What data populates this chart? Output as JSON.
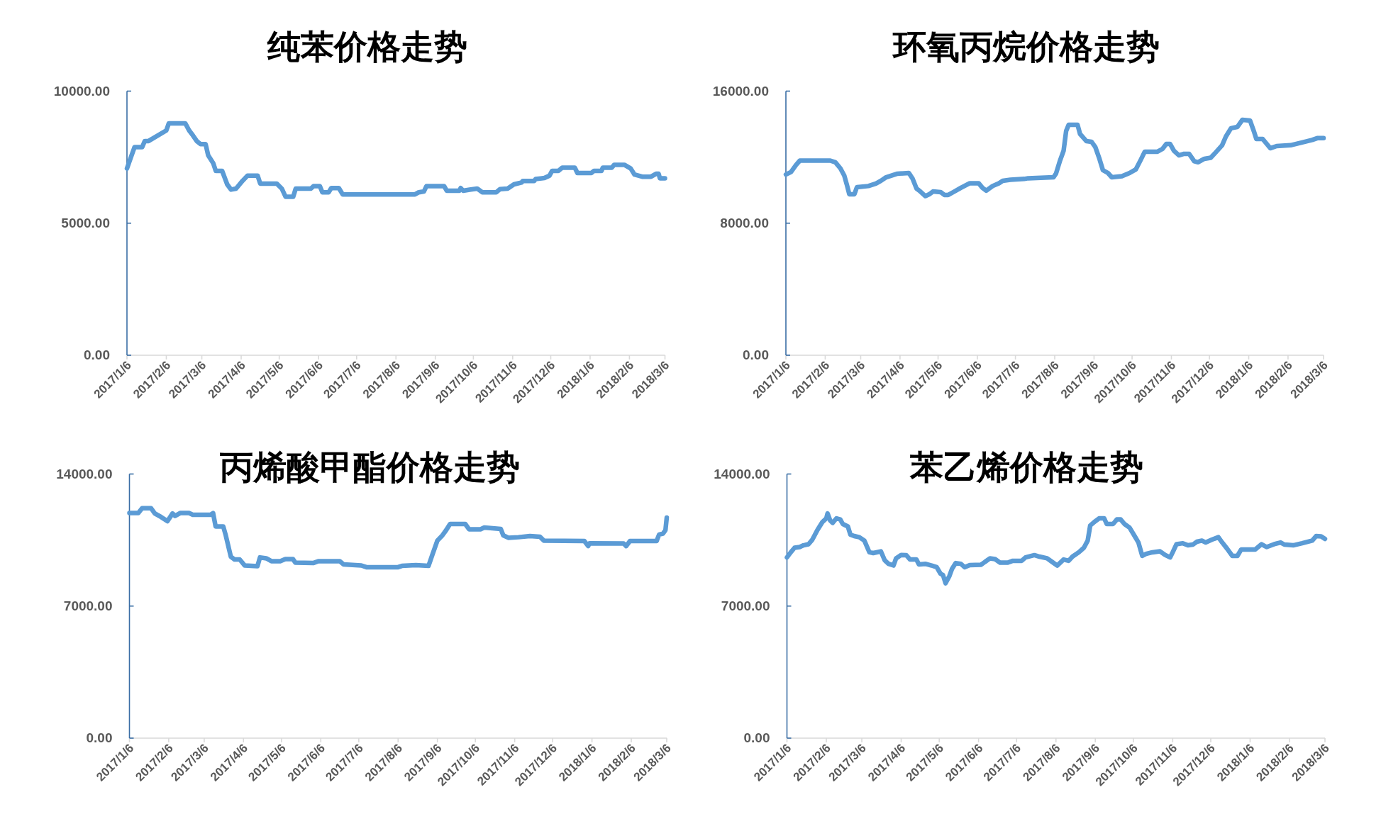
{
  "chart_data": [
    {
      "type": "line",
      "title": "纯苯价格走势",
      "color": "#5b9bd5",
      "x": [
        "2017-01-06",
        "2017-01-09",
        "2017-01-12",
        "2017-01-18",
        "2017-01-20",
        "2017-01-23",
        "2017-02-06",
        "2017-02-08",
        "2017-02-21",
        "2017-02-24",
        "2017-02-27",
        "2017-03-02",
        "2017-03-05",
        "2017-03-09",
        "2017-03-11",
        "2017-03-15",
        "2017-03-17",
        "2017-03-22",
        "2017-03-26",
        "2017-03-29",
        "2017-04-02",
        "2017-04-07",
        "2017-04-11",
        "2017-04-19",
        "2017-04-21",
        "2017-05-04",
        "2017-05-08",
        "2017-05-11",
        "2017-05-17",
        "2017-05-19",
        "2017-05-31",
        "2017-06-02",
        "2017-06-07",
        "2017-06-09",
        "2017-06-14",
        "2017-06-16",
        "2017-06-22",
        "2017-06-25",
        "2017-08-21",
        "2017-08-24",
        "2017-08-28",
        "2017-08-30",
        "2017-09-13",
        "2017-09-15",
        "2017-09-25",
        "2017-09-26",
        "2017-09-28",
        "2017-10-03",
        "2017-10-09",
        "2017-10-13",
        "2017-10-24",
        "2017-10-27",
        "2017-11-02",
        "2017-11-07",
        "2017-11-13",
        "2017-11-14",
        "2017-11-23",
        "2017-11-24",
        "2017-12-01",
        "2017-12-05",
        "2017-12-07",
        "2017-12-12",
        "2017-12-15",
        "2017-12-25",
        "2017-12-27",
        "2018-01-07",
        "2018-01-09",
        "2018-01-15",
        "2018-01-16",
        "2018-01-23",
        "2018-01-25",
        "2018-02-02",
        "2018-02-07",
        "2018-02-10",
        "2018-02-16",
        "2018-02-23",
        "2018-02-27",
        "2018-03-01",
        "2018-03-02",
        "2018-03-06"
      ],
      "values": [
        7070,
        7480,
        7880,
        7880,
        8110,
        8110,
        8510,
        8780,
        8780,
        8510,
        8320,
        8110,
        7990,
        7990,
        7570,
        7270,
        6980,
        6980,
        6470,
        6270,
        6310,
        6600,
        6800,
        6800,
        6500,
        6500,
        6310,
        6000,
        6000,
        6310,
        6310,
        6400,
        6400,
        6170,
        6170,
        6330,
        6330,
        6090,
        6090,
        6170,
        6200,
        6400,
        6400,
        6230,
        6230,
        6330,
        6230,
        6270,
        6310,
        6170,
        6170,
        6290,
        6310,
        6470,
        6540,
        6600,
        6600,
        6670,
        6710,
        6800,
        6980,
        6980,
        7100,
        7100,
        6900,
        6900,
        6980,
        6980,
        7100,
        7100,
        7210,
        7210,
        7070,
        6840,
        6760,
        6760,
        6870,
        6870,
        6700,
        6700
      ],
      "xlim": [
        "2017-01-06",
        "2018-03-06"
      ],
      "xticks": [
        {
          "value": "2017-01-06",
          "label": "2017/1/6"
        },
        {
          "value": "2017-02-06",
          "label": "2017/2/6"
        },
        {
          "value": "2017-03-06",
          "label": "2017/3/6"
        },
        {
          "value": "2017-04-06",
          "label": "2017/4/6"
        },
        {
          "value": "2017-05-06",
          "label": "2017/5/6"
        },
        {
          "value": "2017-06-06",
          "label": "2017/6/6"
        },
        {
          "value": "2017-07-06",
          "label": "2017/7/6"
        },
        {
          "value": "2017-08-06",
          "label": "2017/8/6"
        },
        {
          "value": "2017-09-06",
          "label": "2017/9/6"
        },
        {
          "value": "2017-10-06",
          "label": "2017/10/6"
        },
        {
          "value": "2017-11-06",
          "label": "2017/11/6"
        },
        {
          "value": "2017-12-06",
          "label": "2017/12/6"
        },
        {
          "value": "2018-01-06",
          "label": "2018/1/6"
        },
        {
          "value": "2018-02-06",
          "label": "2018/2/6"
        },
        {
          "value": "2018-03-06",
          "label": "2018/3/6"
        }
      ],
      "ylim": [
        0,
        10000
      ],
      "yticks": [
        {
          "value": 0,
          "label": "0.00"
        },
        {
          "value": 5000,
          "label": "5000.00"
        },
        {
          "value": 10000,
          "label": "10000.00"
        }
      ]
    },
    {
      "type": "line",
      "title": "环氧丙烷价格走势",
      "color": "#5b9bd5",
      "x": [
        "2017-01-06",
        "2017-01-10",
        "2017-01-14",
        "2017-01-17",
        "2017-02-10",
        "2017-02-14",
        "2017-02-18",
        "2017-02-21",
        "2017-02-23",
        "2017-02-25",
        "2017-03-01",
        "2017-03-03",
        "2017-03-12",
        "2017-03-18",
        "2017-03-22",
        "2017-03-26",
        "2017-04-04",
        "2017-04-13",
        "2017-04-16",
        "2017-04-19",
        "2017-04-22",
        "2017-04-26",
        "2017-04-29",
        "2017-05-02",
        "2017-05-08",
        "2017-05-11",
        "2017-05-14",
        "2017-05-18",
        "2017-05-24",
        "2017-05-31",
        "2017-06-07",
        "2017-06-10",
        "2017-06-13",
        "2017-06-18",
        "2017-06-23",
        "2017-06-26",
        "2017-07-02",
        "2017-07-13",
        "2017-07-16",
        "2017-08-05",
        "2017-08-07",
        "2017-08-10",
        "2017-08-13",
        "2017-08-15",
        "2017-08-17",
        "2017-08-24",
        "2017-08-26",
        "2017-08-31",
        "2017-09-04",
        "2017-09-07",
        "2017-09-10",
        "2017-09-13",
        "2017-09-17",
        "2017-09-20",
        "2017-09-28",
        "2017-10-04",
        "2017-10-09",
        "2017-10-13",
        "2017-10-16",
        "2017-10-26",
        "2017-10-30",
        "2017-11-02",
        "2017-11-05",
        "2017-11-08",
        "2017-11-12",
        "2017-11-16",
        "2017-11-20",
        "2017-11-24",
        "2017-11-27",
        "2017-12-02",
        "2017-12-07",
        "2017-12-11",
        "2017-12-16",
        "2017-12-19",
        "2017-12-23",
        "2017-12-28",
        "2018-01-01",
        "2018-01-07",
        "2018-01-10",
        "2018-01-12",
        "2018-01-17",
        "2018-01-20",
        "2018-01-23",
        "2018-01-28",
        "2018-02-08",
        "2018-02-16",
        "2018-02-25",
        "2018-03-01",
        "2018-03-06"
      ],
      "values": [
        10950,
        11100,
        11530,
        11790,
        11790,
        11690,
        11320,
        10890,
        10350,
        9750,
        9750,
        10180,
        10250,
        10400,
        10570,
        10780,
        11000,
        11040,
        10680,
        10100,
        9920,
        9640,
        9750,
        9920,
        9880,
        9710,
        9710,
        9880,
        10140,
        10420,
        10420,
        10140,
        9970,
        10250,
        10420,
        10570,
        10630,
        10680,
        10720,
        10780,
        11000,
        11750,
        12390,
        13580,
        13960,
        13960,
        13400,
        12970,
        12930,
        12610,
        11960,
        11210,
        11040,
        10780,
        10850,
        11040,
        11260,
        11860,
        12330,
        12330,
        12500,
        12800,
        12800,
        12390,
        12110,
        12200,
        12200,
        11750,
        11690,
        11900,
        11960,
        12290,
        12720,
        13250,
        13750,
        13830,
        14260,
        14220,
        13580,
        13100,
        13100,
        12820,
        12540,
        12670,
        12720,
        12870,
        13040,
        13150,
        13150
      ],
      "xlim": [
        "2017-01-06",
        "2018-03-06"
      ],
      "xticks": [
        {
          "value": "2017-01-06",
          "label": "2017/1/6"
        },
        {
          "value": "2017-02-06",
          "label": "2017/2/6"
        },
        {
          "value": "2017-03-06",
          "label": "2017/3/6"
        },
        {
          "value": "2017-04-06",
          "label": "2017/4/6"
        },
        {
          "value": "2017-05-06",
          "label": "2017/5/6"
        },
        {
          "value": "2017-06-06",
          "label": "2017/6/6"
        },
        {
          "value": "2017-07-06",
          "label": "2017/7/6"
        },
        {
          "value": "2017-08-06",
          "label": "2017/8/6"
        },
        {
          "value": "2017-09-06",
          "label": "2017/9/6"
        },
        {
          "value": "2017-10-06",
          "label": "2017/10/6"
        },
        {
          "value": "2017-11-06",
          "label": "2017/11/6"
        },
        {
          "value": "2017-12-06",
          "label": "2017/12/6"
        },
        {
          "value": "2018-01-06",
          "label": "2018/1/6"
        },
        {
          "value": "2018-02-06",
          "label": "2018/2/6"
        },
        {
          "value": "2018-03-06",
          "label": "2018/3/6"
        }
      ],
      "ylim": [
        0,
        16000
      ],
      "yticks": [
        {
          "value": 0,
          "label": "0.00"
        },
        {
          "value": 8000,
          "label": "8000.00"
        },
        {
          "value": 16000,
          "label": "16000.00"
        }
      ]
    },
    {
      "type": "line",
      "title": "丙烯酸甲酯价格走势",
      "color": "#5b9bd5",
      "x": [
        "2017-01-06",
        "2017-01-13",
        "2017-01-16",
        "2017-01-23",
        "2017-01-26",
        "2017-01-31",
        "2017-02-05",
        "2017-02-09",
        "2017-02-11",
        "2017-02-15",
        "2017-02-22",
        "2017-02-25",
        "2017-03-11",
        "2017-03-13",
        "2017-03-15",
        "2017-03-21",
        "2017-03-23",
        "2017-03-27",
        "2017-03-30",
        "2017-04-03",
        "2017-04-07",
        "2017-04-17",
        "2017-04-19",
        "2017-04-24",
        "2017-04-28",
        "2017-05-05",
        "2017-05-09",
        "2017-05-15",
        "2017-05-17",
        "2017-05-31",
        "2017-06-04",
        "2017-06-21",
        "2017-06-24",
        "2017-07-08",
        "2017-07-12",
        "2017-08-06",
        "2017-08-09",
        "2017-08-20",
        "2017-08-30",
        "2017-09-02",
        "2017-09-06",
        "2017-09-10",
        "2017-09-13",
        "2017-09-16",
        "2017-09-28",
        "2017-10-01",
        "2017-10-10",
        "2017-10-13",
        "2017-10-26",
        "2017-10-28",
        "2017-11-01",
        "2017-11-09",
        "2017-11-18",
        "2017-11-26",
        "2017-11-29",
        "2017-12-31",
        "2018-01-03",
        "2018-01-04",
        "2018-01-31",
        "2018-02-02",
        "2018-02-05",
        "2018-02-26",
        "2018-02-28",
        "2018-03-03",
        "2018-03-05",
        "2018-03-06"
      ],
      "values": [
        11930,
        11930,
        12190,
        12190,
        11910,
        11720,
        11500,
        11910,
        11780,
        11930,
        11930,
        11840,
        11840,
        11930,
        11220,
        11220,
        10750,
        9620,
        9470,
        9470,
        9150,
        9110,
        9580,
        9530,
        9380,
        9380,
        9490,
        9490,
        9300,
        9280,
        9380,
        9380,
        9210,
        9150,
        9060,
        9060,
        9130,
        9170,
        9130,
        9710,
        10470,
        10750,
        11030,
        11350,
        11350,
        11070,
        11070,
        11160,
        11090,
        10750,
        10620,
        10650,
        10710,
        10670,
        10470,
        10450,
        10180,
        10330,
        10320,
        10180,
        10450,
        10450,
        10790,
        10840,
        11030,
        11690
      ],
      "xlim": [
        "2017-01-06",
        "2018-03-06"
      ],
      "xticks": [
        {
          "value": "2017-01-06",
          "label": "2017/1/6"
        },
        {
          "value": "2017-02-06",
          "label": "2017/2/6"
        },
        {
          "value": "2017-03-06",
          "label": "2017/3/6"
        },
        {
          "value": "2017-04-06",
          "label": "2017/4/6"
        },
        {
          "value": "2017-05-06",
          "label": "2017/5/6"
        },
        {
          "value": "2017-06-06",
          "label": "2017/6/6"
        },
        {
          "value": "2017-07-06",
          "label": "2017/7/6"
        },
        {
          "value": "2017-08-06",
          "label": "2017/8/6"
        },
        {
          "value": "2017-09-06",
          "label": "2017/9/6"
        },
        {
          "value": "2017-10-06",
          "label": "2017/10/6"
        },
        {
          "value": "2017-11-06",
          "label": "2017/11/6"
        },
        {
          "value": "2017-12-06",
          "label": "2017/12/6"
        },
        {
          "value": "2018-01-06",
          "label": "2018/1/6"
        },
        {
          "value": "2018-02-06",
          "label": "2018/2/6"
        },
        {
          "value": "2018-03-06",
          "label": "2018/3/6"
        }
      ],
      "ylim": [
        0,
        14000
      ],
      "yticks": [
        {
          "value": 0,
          "label": "0.00"
        },
        {
          "value": 7000,
          "label": "7000.00"
        },
        {
          "value": 14000,
          "label": "14000.00"
        }
      ]
    },
    {
      "type": "line",
      "title": "苯乙烯价格走势",
      "color": "#5b9bd5",
      "x": [
        "2017-01-06",
        "2017-01-09",
        "2017-01-12",
        "2017-01-16",
        "2017-01-19",
        "2017-01-23",
        "2017-01-26",
        "2017-01-30",
        "2017-02-03",
        "2017-02-06",
        "2017-02-07",
        "2017-02-09",
        "2017-02-11",
        "2017-02-14",
        "2017-02-17",
        "2017-02-19",
        "2017-02-23",
        "2017-02-25",
        "2017-02-28",
        "2017-03-04",
        "2017-03-08",
        "2017-03-12",
        "2017-03-15",
        "2017-03-21",
        "2017-03-24",
        "2017-03-27",
        "2017-03-31",
        "2017-04-02",
        "2017-04-06",
        "2017-04-10",
        "2017-04-13",
        "2017-04-18",
        "2017-04-20",
        "2017-04-25",
        "2017-04-30",
        "2017-05-04",
        "2017-05-07",
        "2017-05-09",
        "2017-05-11",
        "2017-05-14",
        "2017-05-16",
        "2017-05-19",
        "2017-05-23",
        "2017-05-26",
        "2017-05-30",
        "2017-06-08",
        "2017-06-11",
        "2017-06-15",
        "2017-06-19",
        "2017-06-23",
        "2017-06-29",
        "2017-07-03",
        "2017-07-10",
        "2017-07-13",
        "2017-07-20",
        "2017-07-24",
        "2017-07-30",
        "2017-08-03",
        "2017-08-07",
        "2017-08-12",
        "2017-08-16",
        "2017-08-19",
        "2017-08-24",
        "2017-08-28",
        "2017-08-31",
        "2017-09-02",
        "2017-09-06",
        "2017-09-09",
        "2017-09-13",
        "2017-09-15",
        "2017-09-20",
        "2017-09-23",
        "2017-09-26",
        "2017-09-29",
        "2017-10-03",
        "2017-10-07",
        "2017-10-10",
        "2017-10-13",
        "2017-10-16",
        "2017-10-21",
        "2017-10-27",
        "2017-10-31",
        "2017-11-04",
        "2017-11-06",
        "2017-11-09",
        "2017-11-14",
        "2017-11-18",
        "2017-11-22",
        "2017-11-25",
        "2017-11-29",
        "2017-12-02",
        "2017-12-07",
        "2017-12-12",
        "2017-12-15",
        "2017-12-19",
        "2017-12-23",
        "2017-12-27",
        "2017-12-30",
        "2018-01-10",
        "2018-01-15",
        "2018-01-19",
        "2018-01-25",
        "2018-01-30",
        "2018-02-02",
        "2018-02-09",
        "2018-02-16",
        "2018-02-24",
        "2018-02-27",
        "2018-03-03",
        "2018-03-06"
      ],
      "values": [
        9580,
        9850,
        10090,
        10130,
        10220,
        10280,
        10520,
        11030,
        11460,
        11650,
        11910,
        11540,
        11410,
        11650,
        11590,
        11350,
        11220,
        10790,
        10710,
        10650,
        10470,
        9850,
        9810,
        9900,
        9430,
        9240,
        9150,
        9530,
        9710,
        9700,
        9470,
        9470,
        9210,
        9240,
        9150,
        9060,
        8720,
        8640,
        8210,
        8590,
        8960,
        9280,
        9240,
        9060,
        9170,
        9190,
        9340,
        9530,
        9490,
        9300,
        9300,
        9400,
        9400,
        9580,
        9700,
        9620,
        9530,
        9340,
        9150,
        9470,
        9400,
        9620,
        9850,
        10090,
        10470,
        11270,
        11500,
        11650,
        11650,
        11350,
        11350,
        11590,
        11590,
        11350,
        11160,
        10710,
        10370,
        9660,
        9770,
        9850,
        9900,
        9710,
        9580,
        9850,
        10280,
        10330,
        10220,
        10260,
        10410,
        10470,
        10370,
        10520,
        10650,
        10370,
        10030,
        9660,
        9660,
        10000,
        10000,
        10280,
        10130,
        10280,
        10370,
        10260,
        10220,
        10330,
        10470,
        10710,
        10690,
        10560
      ],
      "xlim": [
        "2017-01-06",
        "2018-03-06"
      ],
      "xticks": [
        {
          "value": "2017-01-06",
          "label": "2017/1/6"
        },
        {
          "value": "2017-02-06",
          "label": "2017/2/6"
        },
        {
          "value": "2017-03-06",
          "label": "2017/3/6"
        },
        {
          "value": "2017-04-06",
          "label": "2017/4/6"
        },
        {
          "value": "2017-05-06",
          "label": "2017/5/6"
        },
        {
          "value": "2017-06-06",
          "label": "2017/6/6"
        },
        {
          "value": "2017-07-06",
          "label": "2017/7/6"
        },
        {
          "value": "2017-08-06",
          "label": "2017/8/6"
        },
        {
          "value": "2017-09-06",
          "label": "2017/9/6"
        },
        {
          "value": "2017-10-06",
          "label": "2017/10/6"
        },
        {
          "value": "2017-11-06",
          "label": "2017/11/6"
        },
        {
          "value": "2017-12-06",
          "label": "2017/12/6"
        },
        {
          "value": "2018-01-06",
          "label": "2018/1/6"
        },
        {
          "value": "2018-02-06",
          "label": "2018/2/6"
        },
        {
          "value": "2018-03-06",
          "label": "2018/3/6"
        }
      ],
      "ylim": [
        0,
        14000
      ],
      "yticks": [
        {
          "value": 0,
          "label": "0.00"
        },
        {
          "value": 7000,
          "label": "7000.00"
        },
        {
          "value": 14000,
          "label": "14000.00"
        }
      ]
    }
  ]
}
